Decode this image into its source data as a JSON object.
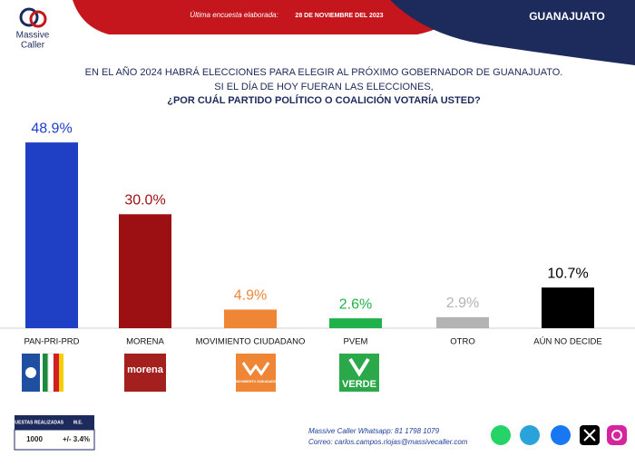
{
  "header": {
    "brand_lines": [
      "Massive",
      "Caller"
    ],
    "survey_label": "Última encuesta elaborada:",
    "survey_date": "28 DE NOVIEMBRE DEL 2023",
    "region": "GUANAJUATO"
  },
  "chart_data": {
    "type": "bar",
    "title_lines": [
      "EN EL AÑO 2024 HABRÁ ELECCIONES PARA ELEGIR AL PRÓXIMO GOBERNADOR DE GUANAJUATO.",
      "SI EL DÍA DE HOY FUERAN LAS ELECCIONES,",
      "¿POR CUÁL PARTIDO POLÍTICO O COALICIÓN VOTARÍA USTED?"
    ],
    "categories": [
      "PAN-PRI-PRD",
      "MORENA",
      "MOVIMIENTO CIUDADANO",
      "PVEM",
      "OTRO",
      "AÚN NO DECIDE"
    ],
    "values": [
      48.9,
      30.0,
      4.9,
      2.6,
      2.9,
      10.7
    ],
    "value_labels": [
      "48.9%",
      "30.0%",
      "4.9%",
      "2.6%",
      "2.9%",
      "10.7%"
    ],
    "colors": [
      "#1f3fc4",
      "#9c0f12",
      "#ee8636",
      "#1fb24a",
      "#b3b3b3",
      "#000000"
    ]
  },
  "party_logos": {
    "morena": "morena",
    "mc": "MOVIMIENTO CIUDADANO",
    "pvem": "VERDE"
  },
  "survey_table": {
    "headers": [
      "ENCUESTAS REALIZADAS",
      "M.E."
    ],
    "row": [
      "1000",
      "+/- 3.4%"
    ]
  },
  "footer": {
    "whatsapp": "Massive Caller Whatsapp: 81 1798 1079",
    "email": "Correo: carlos.campos.riojas@massivecaller.com"
  }
}
